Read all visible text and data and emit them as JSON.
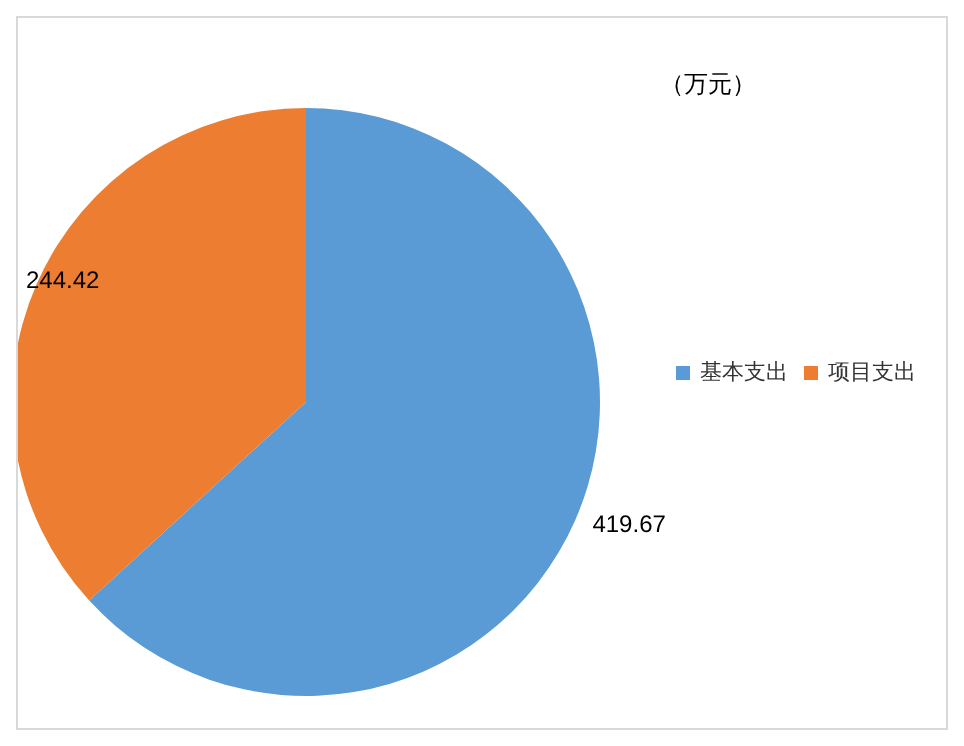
{
  "chart_data": {
    "type": "pie",
    "title": "（万元）",
    "categories": [
      "基本支出",
      "项目支出"
    ],
    "values": [
      419.67,
      244.42
    ],
    "colors": [
      "#5b9bd5",
      "#ed7d31"
    ],
    "data_labels": true,
    "legend": "right"
  }
}
